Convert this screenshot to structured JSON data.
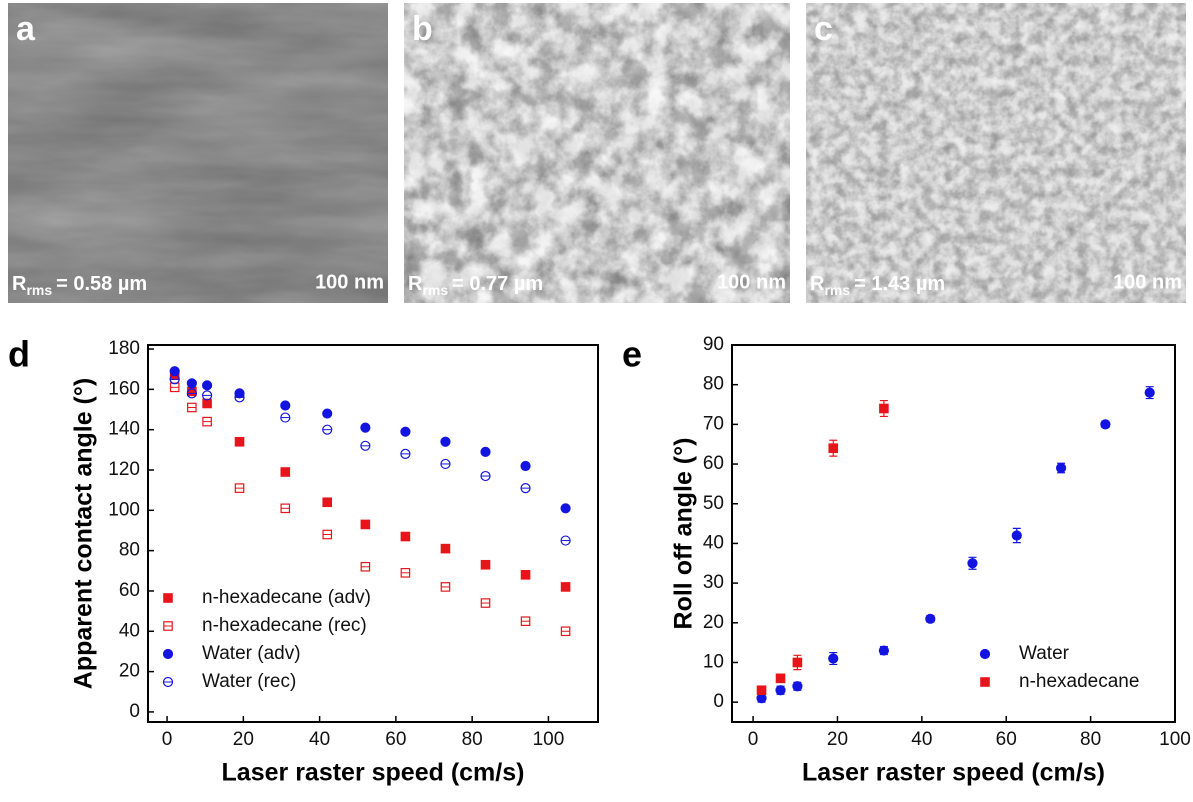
{
  "images": [
    {
      "label": "a",
      "symbol": "R",
      "subscript": "rms",
      "value_text": "= 0.58 µm",
      "scale": "100 nm"
    },
    {
      "label": "b",
      "symbol": "R",
      "subscript": "rms",
      "value_text": "= 0.77 µm",
      "scale": "100 nm"
    },
    {
      "label": "c",
      "symbol": "R",
      "subscript": "rms",
      "value_text": "= 1.43 µm",
      "scale": "100 nm"
    }
  ],
  "chart_data": [
    {
      "type": "scatter",
      "panel": "d",
      "x_label": "Laser raster speed (cm/s)",
      "y_label": "Apparent contact angle (°)",
      "xlim": [
        -5,
        113
      ],
      "ylim": [
        -5,
        182
      ],
      "xticks": [
        0,
        20,
        40,
        60,
        80,
        100
      ],
      "yticks": [
        0,
        20,
        40,
        60,
        80,
        100,
        120,
        140,
        160,
        180
      ],
      "legend": "lower left",
      "series": [
        {
          "name": "n-hexadecane (adv)",
          "color": "#e8141c",
          "marker": "square",
          "filled": true,
          "x": [
            2,
            6.5,
            10.5,
            19,
            31,
            42,
            52,
            62.5,
            73,
            83.5,
            94,
            104.5
          ],
          "values": [
            167,
            159,
            153,
            134,
            119,
            104,
            93,
            87,
            81,
            73,
            68,
            62
          ]
        },
        {
          "name": "n-hexadecane (rec)",
          "color": "#e8141c",
          "marker": "square",
          "filled": false,
          "x": [
            2,
            6.5,
            10.5,
            19,
            31,
            42,
            52,
            62.5,
            73,
            83.5,
            94,
            104.5
          ],
          "values": [
            161,
            151,
            144,
            111,
            101,
            88,
            72,
            69,
            62,
            54,
            45,
            40
          ]
        },
        {
          "name": "Water  (adv)",
          "color": "#1414e0",
          "marker": "circle",
          "filled": true,
          "x": [
            2,
            6.5,
            10.5,
            19,
            31,
            42,
            52,
            62.5,
            73,
            83.5,
            94,
            104.5
          ],
          "values": [
            169,
            163,
            162,
            158,
            152,
            148,
            141,
            139,
            134,
            129,
            122,
            101
          ]
        },
        {
          "name": "Water  (rec)",
          "color": "#1414e0",
          "marker": "circle",
          "filled": false,
          "x": [
            2,
            6.5,
            10.5,
            19,
            31,
            42,
            52,
            62.5,
            73,
            83.5,
            94,
            104.5
          ],
          "values": [
            165,
            158,
            157,
            156,
            146,
            140,
            132,
            128,
            123,
            117,
            111,
            85
          ]
        }
      ]
    },
    {
      "type": "scatter",
      "panel": "e",
      "x_label": "Laser raster speed (cm/s)",
      "y_label": "Roll off angle (°)",
      "xlim": [
        -5,
        100
      ],
      "ylim": [
        -5,
        90
      ],
      "xticks": [
        0,
        20,
        40,
        60,
        80,
        100
      ],
      "yticks": [
        0,
        10,
        20,
        30,
        40,
        50,
        60,
        70,
        80,
        90
      ],
      "legend": "lower right",
      "series": [
        {
          "name": "Water",
          "color": "#1414e0",
          "marker": "circle",
          "filled": true,
          "x": [
            2,
            6.5,
            10.5,
            19,
            31,
            42,
            52,
            62.5,
            73,
            83.5,
            94
          ],
          "values": [
            1,
            3,
            4,
            11,
            13,
            21,
            35,
            42,
            59,
            70,
            78
          ],
          "errors": [
            1,
            1,
            1,
            1.5,
            1,
            0.8,
            1.5,
            1.8,
            1.2,
            0.8,
            1.5
          ]
        },
        {
          "name": "n-hexadecane",
          "color": "#e8141c",
          "marker": "square",
          "filled": true,
          "x": [
            2,
            6.5,
            10.5,
            19,
            31
          ],
          "values": [
            3,
            6,
            10,
            64,
            74
          ],
          "errors": [
            1,
            1,
            1.8,
            2,
            2
          ]
        }
      ]
    }
  ]
}
